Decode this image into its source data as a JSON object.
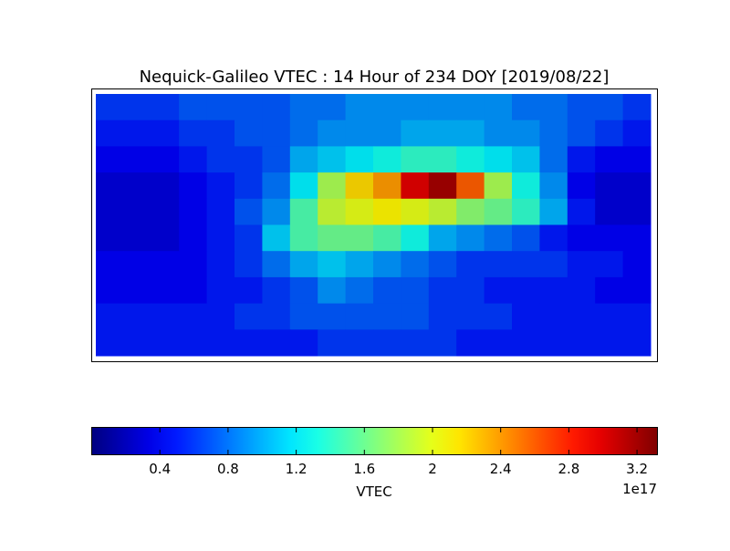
{
  "chart_data": {
    "type": "heatmap",
    "title": "Nequick-Galileo VTEC : 14 Hour of 234 DOY [2019/08/22]",
    "z": [
      [
        0.6,
        0.6,
        0.6,
        0.7,
        0.7,
        0.7,
        0.7,
        0.8,
        0.8,
        0.9,
        0.9,
        0.9,
        0.9,
        0.9,
        0.9,
        0.8,
        0.8,
        0.7,
        0.7,
        0.6
      ],
      [
        0.5,
        0.5,
        0.5,
        0.6,
        0.6,
        0.7,
        0.7,
        0.8,
        0.9,
        0.9,
        0.9,
        1.0,
        1.0,
        1.0,
        0.9,
        0.9,
        0.8,
        0.7,
        0.6,
        0.5
      ],
      [
        0.4,
        0.4,
        0.4,
        0.5,
        0.6,
        0.6,
        0.7,
        1.0,
        1.1,
        1.2,
        1.3,
        1.4,
        1.4,
        1.3,
        1.2,
        1.1,
        0.8,
        0.5,
        0.4,
        0.4
      ],
      [
        0.3,
        0.3,
        0.3,
        0.4,
        0.5,
        0.6,
        0.8,
        1.2,
        1.8,
        2.2,
        2.4,
        3.0,
        3.2,
        2.6,
        1.8,
        1.3,
        0.9,
        0.4,
        0.3,
        0.3
      ],
      [
        0.3,
        0.3,
        0.3,
        0.4,
        0.5,
        0.7,
        0.9,
        1.5,
        1.9,
        2.0,
        2.1,
        2.0,
        1.9,
        1.7,
        1.6,
        1.4,
        1.0,
        0.5,
        0.3,
        0.3
      ],
      [
        0.3,
        0.3,
        0.3,
        0.4,
        0.5,
        0.6,
        1.1,
        1.5,
        1.6,
        1.6,
        1.5,
        1.3,
        1.0,
        0.9,
        0.8,
        0.7,
        0.5,
        0.4,
        0.4,
        0.4
      ],
      [
        0.4,
        0.4,
        0.4,
        0.4,
        0.5,
        0.6,
        0.8,
        1.0,
        1.1,
        1.0,
        0.9,
        0.8,
        0.7,
        0.6,
        0.6,
        0.6,
        0.6,
        0.5,
        0.5,
        0.4
      ],
      [
        0.4,
        0.4,
        0.4,
        0.4,
        0.5,
        0.5,
        0.6,
        0.7,
        0.9,
        0.8,
        0.7,
        0.7,
        0.6,
        0.6,
        0.5,
        0.5,
        0.5,
        0.5,
        0.4,
        0.4
      ],
      [
        0.5,
        0.5,
        0.5,
        0.5,
        0.5,
        0.6,
        0.6,
        0.7,
        0.7,
        0.7,
        0.7,
        0.7,
        0.6,
        0.6,
        0.6,
        0.5,
        0.5,
        0.5,
        0.5,
        0.5
      ],
      [
        0.5,
        0.5,
        0.5,
        0.5,
        0.5,
        0.5,
        0.5,
        0.5,
        0.6,
        0.6,
        0.6,
        0.6,
        0.6,
        0.5,
        0.5,
        0.5,
        0.5,
        0.5,
        0.5,
        0.5
      ]
    ],
    "colormap": "jet",
    "clim": [
      0.0,
      3.32
    ],
    "cticks": [
      0.4,
      0.8,
      1.2,
      1.6,
      2.0,
      2.4,
      2.8,
      3.2
    ],
    "colorbar_label": "VTEC",
    "colorbar_offset_label": "1e17"
  }
}
